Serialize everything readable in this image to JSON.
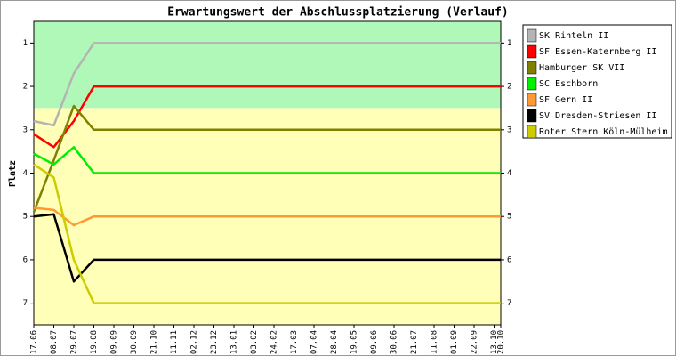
{
  "chart_data": {
    "type": "line",
    "title": "Erwartungswert der Abschlussplatzierung (Verlauf)",
    "y_label": "Platz",
    "categories": [
      "17.06",
      "08.07",
      "29.07",
      "19.08",
      "09.09",
      "30.09",
      "21.10",
      "11.11",
      "02.12",
      "23.12",
      "13.01",
      "03.02",
      "24.02",
      "17.03",
      "07.04",
      "28.04",
      "19.05",
      "09.06",
      "30.06",
      "21.07",
      "11.08",
      "01.09",
      "22.09",
      "13.10",
      "20.10"
    ],
    "ylim": [
      0.5,
      7.5
    ],
    "y_inverted": true,
    "yticks": [
      1,
      2,
      3,
      4,
      5,
      6,
      7
    ],
    "bands": [
      {
        "from": 0.5,
        "to": 2.5,
        "color": "#b0f8b8"
      },
      {
        "from": 2.5,
        "to": 7.5,
        "color": "#ffffb8"
      }
    ],
    "series": [
      {
        "name": "SK Rinteln II",
        "color": "#b4b4b4",
        "values": [
          2.8,
          2.9,
          1.7,
          1,
          1,
          1,
          1,
          1,
          1,
          1,
          1,
          1,
          1,
          1,
          1,
          1,
          1,
          1,
          1,
          1,
          1,
          1,
          1,
          1,
          1
        ]
      },
      {
        "name": "SF Essen-Katernberg II",
        "color": "#ff0000",
        "values": [
          3.1,
          3.4,
          2.8,
          2,
          2,
          2,
          2,
          2,
          2,
          2,
          2,
          2,
          2,
          2,
          2,
          2,
          2,
          2,
          2,
          2,
          2,
          2,
          2,
          2,
          2
        ]
      },
      {
        "name": "Hamburger SK VII",
        "color": "#808000",
        "values": [
          4.9,
          3.7,
          2.45,
          3,
          3,
          3,
          3,
          3,
          3,
          3,
          3,
          3,
          3,
          3,
          3,
          3,
          3,
          3,
          3,
          3,
          3,
          3,
          3,
          3,
          3
        ]
      },
      {
        "name": "SC Eschborn",
        "color": "#00ee00",
        "values": [
          3.55,
          3.8,
          3.4,
          4,
          4,
          4,
          4,
          4,
          4,
          4,
          4,
          4,
          4,
          4,
          4,
          4,
          4,
          4,
          4,
          4,
          4,
          4,
          4,
          4,
          4
        ]
      },
      {
        "name": "SF Gern II",
        "color": "#ff9933",
        "values": [
          4.8,
          4.85,
          5.2,
          5,
          5,
          5,
          5,
          5,
          5,
          5,
          5,
          5,
          5,
          5,
          5,
          5,
          5,
          5,
          5,
          5,
          5,
          5,
          5,
          5,
          5
        ]
      },
      {
        "name": "SV Dresden-Striesen II",
        "color": "#000000",
        "values": [
          5,
          4.95,
          6.5,
          6,
          6,
          6,
          6,
          6,
          6,
          6,
          6,
          6,
          6,
          6,
          6,
          6,
          6,
          6,
          6,
          6,
          6,
          6,
          6,
          6,
          6
        ]
      },
      {
        "name": "Roter Stern Köln-Mülheim",
        "color": "#cccc00",
        "values": [
          3.8,
          4.1,
          6,
          7,
          7,
          7,
          7,
          7,
          7,
          7,
          7,
          7,
          7,
          7,
          7,
          7,
          7,
          7,
          7,
          7,
          7,
          7,
          7,
          7,
          7
        ]
      }
    ]
  }
}
